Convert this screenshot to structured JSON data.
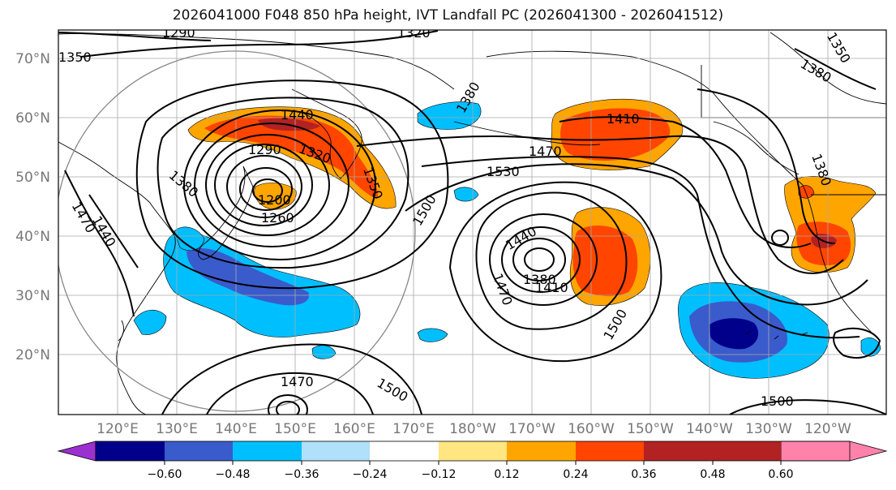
{
  "title": "2026041000 F048 850 hPa height, IVT Landfall PC (2026041300 - 2026041512)",
  "lat_ticks": [
    "70°N",
    "60°N",
    "50°N",
    "40°N",
    "30°N",
    "20°N"
  ],
  "lon_ticks": [
    "120°E",
    "130°E",
    "140°E",
    "150°E",
    "160°E",
    "170°E",
    "180°W",
    "170°W",
    "160°W",
    "150°W",
    "140°W",
    "130°W",
    "120°W"
  ],
  "contour_labels": [
    "1290",
    "1320",
    "1350",
    "1380",
    "1440",
    "1470",
    "1320",
    "1290",
    "1350",
    "1380",
    "1200",
    "1260",
    "1410",
    "1470",
    "1530",
    "1500",
    "1440",
    "1380",
    "1410",
    "1470",
    "1500",
    "1380",
    "1380",
    "1350",
    "1470",
    "1440",
    "1500",
    "1500"
  ],
  "colorbar": {
    "ticks": [
      "−0.60",
      "−0.48",
      "−0.36",
      "−0.24",
      "−0.12",
      "0.12",
      "0.24",
      "0.36",
      "0.48",
      "0.60"
    ],
    "colors": [
      "#9b30d0",
      "#00008b",
      "#3a5bcb",
      "#00bfff",
      "#b0e0fa",
      "#ffffff",
      "#ffe680",
      "#ffa500",
      "#ff4500",
      "#b22222",
      "#ff82ab"
    ]
  },
  "map_colors": {
    "ocean_land": "#ffffff",
    "grid": "#a9a9a9",
    "contour": "#000000"
  }
}
